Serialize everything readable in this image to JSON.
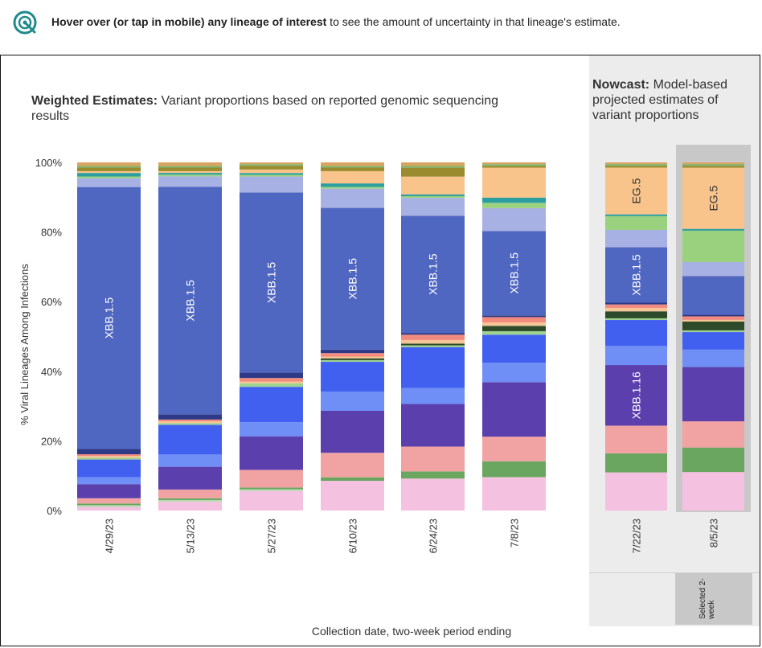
{
  "header": {
    "hint_bold": "Hover over (or tap in mobile) any lineage of interest",
    "hint_rest": " to see the amount of uncertainty in that lineage's estimate."
  },
  "weighted": {
    "title_bold": "Weighted Estimates:",
    "title_rest": " Variant proportions based on reported genomic sequencing results"
  },
  "nowcast": {
    "title_bold": "Nowcast:",
    "title_rest": " Model-based projected estimates of variant proportions",
    "selected_label": "Selected 2-week"
  },
  "chart_data": {
    "type": "bar",
    "stacked": true,
    "ylabel": "% Viral Lineages Among Infections",
    "xlabel": "Collection date, two-week period ending",
    "yticks": [
      "0%",
      "20%",
      "40%",
      "60%",
      "80%",
      "100%"
    ],
    "ylim": [
      0,
      100
    ],
    "categories": [
      "4/29/23",
      "5/13/23",
      "5/27/23",
      "6/10/23",
      "6/24/23",
      "7/8/23",
      "7/22/23",
      "8/5/23"
    ],
    "nowcast_categories": [
      "7/22/23",
      "8/5/23"
    ],
    "selected_category": "8/5/23",
    "series": [
      {
        "color": "#f4c1e0",
        "values": [
          1.0,
          2.5,
          5.5,
          8.5,
          9.0,
          9.5,
          11.0,
          11.0
        ]
      },
      {
        "color": "#bcd9b6",
        "values": [
          0.5,
          0.5,
          0.5,
          0.0,
          0.0,
          0.0,
          0.0,
          0.0
        ]
      },
      {
        "color": "#6aa65f",
        "values": [
          0.5,
          0.5,
          0.5,
          1.0,
          2.0,
          4.5,
          5.5,
          7.0
        ]
      },
      {
        "color": "#f0a3a2",
        "values": [
          1.5,
          2.5,
          5.0,
          7.0,
          7.0,
          7.0,
          8.0,
          7.5
        ]
      },
      {
        "color": "#5b3fad",
        "values": [
          4.0,
          6.5,
          9.5,
          12.0,
          12.0,
          15.5,
          17.5,
          15.5
        ]
      },
      {
        "color": "#6f8ef6",
        "values": [
          2.0,
          3.5,
          4.0,
          5.5,
          4.5,
          5.5,
          5.5,
          5.0
        ]
      },
      {
        "color": "#4160f0",
        "values": [
          5.0,
          8.5,
          10.0,
          8.5,
          11.5,
          8.0,
          7.5,
          5.0
        ]
      },
      {
        "color": "#9fd28f",
        "values": [
          0.5,
          0.5,
          1.0,
          0.5,
          0.5,
          1.0,
          0.5,
          0.5
        ]
      },
      {
        "color": "#2d4a2a",
        "values": [
          0.0,
          0.0,
          0.0,
          0.5,
          0.5,
          1.5,
          2.0,
          2.5
        ]
      },
      {
        "color": "#f6c596",
        "values": [
          0.5,
          0.5,
          0.5,
          0.5,
          1.0,
          1.0,
          1.0,
          0.5
        ]
      },
      {
        "color": "#f38a7e",
        "values": [
          0.5,
          0.5,
          1.0,
          1.0,
          1.5,
          1.5,
          1.0,
          1.0
        ]
      },
      {
        "color": "#2e3a87",
        "values": [
          1.5,
          1.5,
          1.5,
          1.0,
          0.5,
          0.5,
          0.5,
          0.5
        ]
      },
      {
        "color": "#5067c2",
        "name": "XBB.1.5",
        "values": [
          74.5,
          65.0,
          51.0,
          40.5,
          33.0,
          24.0,
          16.0,
          11.0
        ]
      },
      {
        "color": "#a8b1e3",
        "values": [
          2.5,
          3.0,
          4.5,
          5.5,
          5.0,
          6.5,
          5.0,
          4.0
        ]
      },
      {
        "color": "#9ad17e",
        "values": [
          0.5,
          0.5,
          0.5,
          0.5,
          0.5,
          1.5,
          4.0,
          9.0
        ]
      },
      {
        "color": "#2d9ea0",
        "values": [
          1.0,
          0.5,
          0.5,
          1.0,
          0.5,
          1.5,
          0.5,
          0.5
        ]
      },
      {
        "color": "#f8c48b",
        "name": "EG.5",
        "values": [
          0.5,
          0.5,
          1.0,
          3.5,
          5.0,
          8.5,
          13.5,
          17.5
        ]
      },
      {
        "color": "#9a8b2e",
        "values": [
          1.0,
          1.0,
          1.0,
          1.0,
          2.5,
          0.5,
          0.5,
          0.5
        ]
      },
      {
        "color": "#7fb36a",
        "values": [
          0.5,
          0.5,
          0.5,
          0.5,
          0.5,
          0.5,
          0.5,
          0.5
        ]
      },
      {
        "color": "#d9a45f",
        "values": [
          1.0,
          1.0,
          0.5,
          1.0,
          1.0,
          0.5,
          0.5,
          0.5
        ]
      }
    ],
    "bar_labels": [
      {
        "category": "4/29/23",
        "text": "XBB.1.5",
        "series": 12
      },
      {
        "category": "5/13/23",
        "text": "XBB.1.5",
        "series": 12
      },
      {
        "category": "5/27/23",
        "text": "XBB.1.5",
        "series": 12
      },
      {
        "category": "6/10/23",
        "text": "XBB.1.5",
        "series": 12
      },
      {
        "category": "6/24/23",
        "text": "XBB.1.5",
        "series": 12
      },
      {
        "category": "7/8/23",
        "text": "XBB.1.5",
        "series": 12
      },
      {
        "category": "7/22/23",
        "text": "XBB.1.5",
        "series": 12
      },
      {
        "category": "7/22/23",
        "text": "XBB.1.16",
        "series": 4
      },
      {
        "category": "7/22/23",
        "text": "EG.5",
        "series": 16
      },
      {
        "category": "8/5/23",
        "text": "EG.5",
        "series": 16
      }
    ]
  }
}
